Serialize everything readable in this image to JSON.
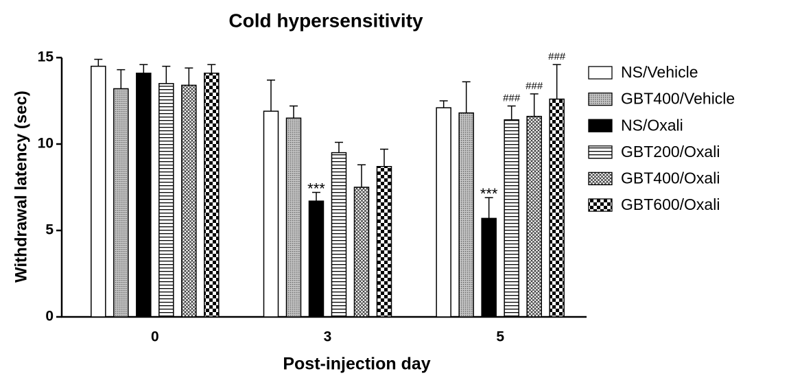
{
  "chart_data": {
    "type": "bar",
    "title": "Cold hypersensitivity",
    "x_label": "Post-injection day",
    "y_label": "Withdrawal latency (sec)",
    "categories": [
      "0",
      "3",
      "5"
    ],
    "ylim": [
      0,
      15
    ],
    "yticks": [
      0,
      5,
      10,
      15
    ],
    "series": [
      {
        "name": "NS/Vehicle",
        "color": "#ffffff",
        "pattern": "none",
        "values": [
          14.5,
          11.9,
          12.1
        ],
        "errors": [
          0.4,
          1.8,
          0.4
        ],
        "annotations": [
          null,
          null,
          null
        ]
      },
      {
        "name": "GBT400/Vehicle",
        "color": "#a8a8a8",
        "pattern": "dots",
        "values": [
          13.2,
          11.5,
          11.8
        ],
        "errors": [
          1.1,
          0.7,
          1.8
        ],
        "annotations": [
          null,
          null,
          null
        ]
      },
      {
        "name": "NS/Oxali",
        "color": "#000000",
        "pattern": "none",
        "values": [
          14.1,
          6.7,
          5.7
        ],
        "errors": [
          0.5,
          0.5,
          1.2
        ],
        "annotations": [
          null,
          "***",
          "***"
        ]
      },
      {
        "name": "GBT200/Oxali",
        "color": "#ffffff",
        "pattern": "horizontal",
        "values": [
          13.5,
          9.5,
          11.4
        ],
        "errors": [
          1.0,
          0.6,
          0.8
        ],
        "annotations": [
          null,
          null,
          "###"
        ]
      },
      {
        "name": "GBT400/Oxali",
        "color": "#ffffff",
        "pattern": "crosshatch",
        "values": [
          13.4,
          7.5,
          11.6
        ],
        "errors": [
          1.0,
          1.3,
          1.3
        ],
        "annotations": [
          null,
          null,
          "###"
        ]
      },
      {
        "name": "GBT600/Oxali",
        "color": "#ffffff",
        "pattern": "checker",
        "values": [
          14.1,
          8.7,
          12.6
        ],
        "errors": [
          0.5,
          1.0,
          2.0
        ],
        "annotations": [
          null,
          null,
          "###"
        ]
      }
    ]
  }
}
